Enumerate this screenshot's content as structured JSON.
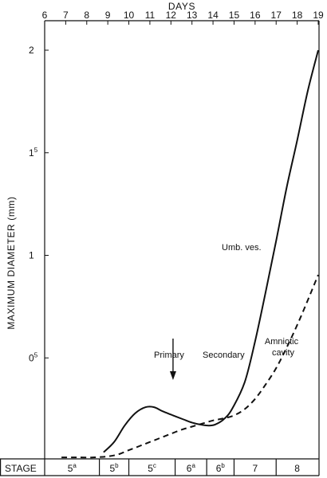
{
  "chart_data": {
    "type": "line",
    "xlabel": "DAYS",
    "ylabel": "MAXIMUM DIAMETER (mm)",
    "xlim": [
      6,
      19
    ],
    "ylim": [
      0,
      2.0
    ],
    "x_ticks": [
      6,
      7,
      8,
      9,
      10,
      11,
      12,
      13,
      14,
      15,
      16,
      17,
      18,
      19
    ],
    "y_ticks": [
      {
        "value": 0.5,
        "main": "0",
        "sup": "5"
      },
      {
        "value": 1.0,
        "main": "1",
        "sup": ""
      },
      {
        "value": 1.5,
        "main": "1",
        "sup": "5"
      },
      {
        "value": 2.0,
        "main": "2",
        "sup": ""
      }
    ],
    "series": [
      {
        "name": "Umb. ves.",
        "style": "solid",
        "points": [
          [
            8.8,
            0.04
          ],
          [
            9.3,
            0.09
          ],
          [
            9.8,
            0.17
          ],
          [
            10.3,
            0.23
          ],
          [
            10.8,
            0.26
          ],
          [
            11.2,
            0.26
          ],
          [
            11.6,
            0.24
          ],
          [
            12.1,
            0.22
          ],
          [
            12.6,
            0.2
          ],
          [
            13.0,
            0.185
          ],
          [
            13.4,
            0.175
          ],
          [
            13.8,
            0.17
          ],
          [
            14.1,
            0.175
          ],
          [
            14.5,
            0.2
          ],
          [
            14.9,
            0.25
          ],
          [
            15.5,
            0.38
          ],
          [
            16.0,
            0.58
          ],
          [
            16.5,
            0.82
          ],
          [
            17.0,
            1.07
          ],
          [
            17.5,
            1.33
          ],
          [
            18.0,
            1.56
          ],
          [
            18.5,
            1.8
          ],
          [
            19.0,
            2.0
          ]
        ]
      },
      {
        "name": "Amniotic cavity",
        "style": "dashed",
        "points": [
          [
            6.8,
            0.015
          ],
          [
            7.5,
            0.015
          ],
          [
            8.3,
            0.015
          ],
          [
            9.0,
            0.02
          ],
          [
            9.5,
            0.03
          ],
          [
            10.0,
            0.05
          ],
          [
            10.5,
            0.07
          ],
          [
            11.0,
            0.09
          ],
          [
            11.5,
            0.11
          ],
          [
            12.0,
            0.13
          ],
          [
            12.5,
            0.15
          ],
          [
            13.0,
            0.165
          ],
          [
            13.5,
            0.18
          ],
          [
            14.0,
            0.195
          ],
          [
            14.5,
            0.205
          ],
          [
            15.0,
            0.22
          ],
          [
            15.5,
            0.25
          ],
          [
            16.0,
            0.3
          ],
          [
            16.5,
            0.37
          ],
          [
            17.0,
            0.45
          ],
          [
            17.5,
            0.55
          ],
          [
            18.0,
            0.66
          ],
          [
            18.5,
            0.78
          ],
          [
            19.0,
            0.905
          ]
        ]
      }
    ],
    "annotations": {
      "series1_label": "Umb. ves.",
      "series2_label_line1": "Amniotic",
      "series2_label_line2": "cavity",
      "arrow_x": 12.1,
      "arrow_left_label": "Primary",
      "arrow_right_label": "Secondary"
    },
    "stage_row": {
      "label": "STAGE",
      "stages": [
        {
          "main": "5",
          "sup": "a",
          "start": 6.6,
          "end": 8.6
        },
        {
          "main": "5",
          "sup": "b",
          "start": 8.6,
          "end": 10.0
        },
        {
          "main": "5",
          "sup": "c",
          "start": 10.0,
          "end": 12.2
        },
        {
          "main": "6",
          "sup": "a",
          "start": 12.2,
          "end": 13.7
        },
        {
          "main": "6",
          "sup": "b",
          "start": 13.7,
          "end": 15.0
        },
        {
          "main": "7",
          "sup": "",
          "start": 15.0,
          "end": 17.0
        },
        {
          "main": "8",
          "sup": "",
          "start": 17.0,
          "end": 19.0
        }
      ]
    }
  }
}
